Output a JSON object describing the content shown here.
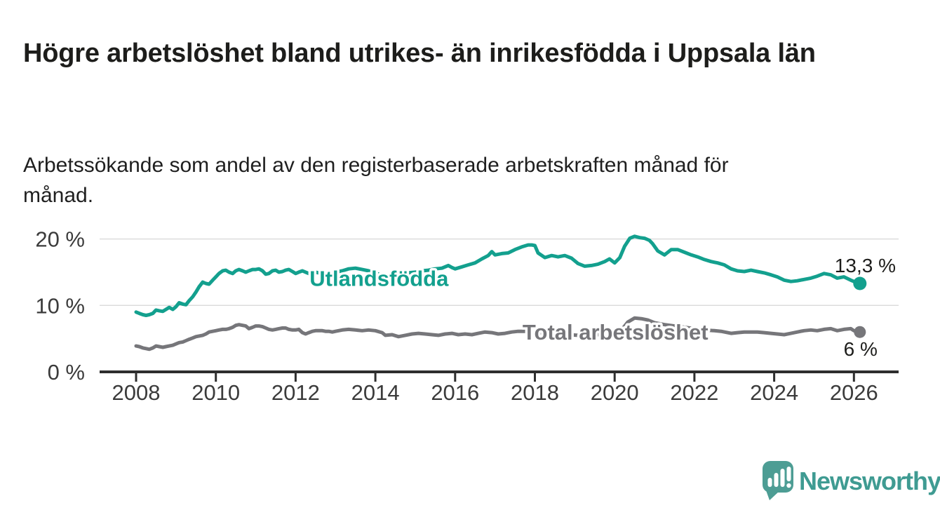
{
  "header": {
    "title": "Högre arbetslöshet bland utrikes- än inrikesfödda i Uppsala län",
    "subtitle": "Arbetssökande som andel av den registerbaserade arbetskraften månad för månad."
  },
  "chart_data": {
    "type": "line",
    "title": "Högre arbetslöshet bland utrikes- än inrikesfödda i Uppsala län",
    "subtitle": "Arbetssökande som andel av den registerbaserade arbetskraften månad för månad.",
    "grid": "horizontal-only",
    "legend": "inline-labels",
    "x_axis": {
      "range": [
        2007.1,
        2027.2
      ],
      "ticks": [
        2008,
        2010,
        2012,
        2014,
        2016,
        2018,
        2020,
        2022,
        2024,
        2026
      ],
      "tick_labels": [
        "2008",
        "2010",
        "2012",
        "2014",
        "2016",
        "2018",
        "2020",
        "2022",
        "2024",
        "2026"
      ]
    },
    "y_axis": {
      "unit": "%",
      "range": [
        0,
        22.2
      ],
      "ticks": [
        0,
        10,
        20
      ],
      "tick_labels": [
        "0 %",
        "10 %",
        "20 %"
      ]
    },
    "series": [
      {
        "id": "utlandsfodda",
        "name": "Utlandsfödda",
        "color": "#13a08e",
        "end_label": "13,3 %",
        "end_value": 13.3,
        "label_anchor": {
          "x": 2012.35,
          "y": 14.1
        },
        "points": [
          [
            2008.0,
            9.0
          ],
          [
            2008.08,
            8.8
          ],
          [
            2008.17,
            8.6
          ],
          [
            2008.25,
            8.5
          ],
          [
            2008.33,
            8.6
          ],
          [
            2008.42,
            8.8
          ],
          [
            2008.5,
            9.3
          ],
          [
            2008.58,
            9.2
          ],
          [
            2008.67,
            9.1
          ],
          [
            2008.75,
            9.4
          ],
          [
            2008.83,
            9.7
          ],
          [
            2008.92,
            9.4
          ],
          [
            2009.0,
            9.8
          ],
          [
            2009.08,
            10.4
          ],
          [
            2009.17,
            10.2
          ],
          [
            2009.25,
            10.1
          ],
          [
            2009.33,
            10.7
          ],
          [
            2009.42,
            11.3
          ],
          [
            2009.5,
            12.0
          ],
          [
            2009.58,
            12.8
          ],
          [
            2009.67,
            13.5
          ],
          [
            2009.75,
            13.3
          ],
          [
            2009.83,
            13.2
          ],
          [
            2009.92,
            13.8
          ],
          [
            2010.0,
            14.3
          ],
          [
            2010.08,
            14.8
          ],
          [
            2010.17,
            15.2
          ],
          [
            2010.25,
            15.3
          ],
          [
            2010.33,
            15.0
          ],
          [
            2010.42,
            14.8
          ],
          [
            2010.5,
            15.2
          ],
          [
            2010.58,
            15.4
          ],
          [
            2010.67,
            15.2
          ],
          [
            2010.75,
            15.0
          ],
          [
            2010.83,
            15.2
          ],
          [
            2010.92,
            15.4
          ],
          [
            2011.0,
            15.4
          ],
          [
            2011.08,
            15.5
          ],
          [
            2011.17,
            15.2
          ],
          [
            2011.25,
            14.7
          ],
          [
            2011.33,
            14.8
          ],
          [
            2011.42,
            15.2
          ],
          [
            2011.5,
            15.3
          ],
          [
            2011.58,
            15.0
          ],
          [
            2011.67,
            15.1
          ],
          [
            2011.75,
            15.3
          ],
          [
            2011.83,
            15.4
          ],
          [
            2011.92,
            15.1
          ],
          [
            2012.0,
            14.8
          ],
          [
            2012.08,
            15.0
          ],
          [
            2012.17,
            15.2
          ],
          [
            2012.25,
            15.0
          ],
          [
            2012.33,
            14.8
          ],
          [
            2012.42,
            14.7
          ],
          [
            2012.5,
            15.0
          ],
          [
            2012.58,
            14.9
          ],
          [
            2012.67,
            14.8
          ],
          [
            2012.75,
            14.9
          ],
          [
            2012.83,
            15.0
          ],
          [
            2012.92,
            14.9
          ],
          [
            2013.0,
            15.0
          ],
          [
            2013.17,
            15.2
          ],
          [
            2013.33,
            15.5
          ],
          [
            2013.5,
            15.6
          ],
          [
            2013.67,
            15.4
          ],
          [
            2013.83,
            15.2
          ],
          [
            2014.0,
            14.9
          ],
          [
            2014.17,
            14.5
          ],
          [
            2014.33,
            14.2
          ],
          [
            2014.5,
            14.4
          ],
          [
            2014.67,
            14.7
          ],
          [
            2014.83,
            14.9
          ],
          [
            2015.0,
            15.0
          ],
          [
            2015.17,
            15.2
          ],
          [
            2015.33,
            15.3
          ],
          [
            2015.5,
            15.5
          ],
          [
            2015.67,
            15.6
          ],
          [
            2015.83,
            16.0
          ],
          [
            2015.92,
            15.7
          ],
          [
            2016.0,
            15.5
          ],
          [
            2016.17,
            15.8
          ],
          [
            2016.33,
            16.1
          ],
          [
            2016.5,
            16.4
          ],
          [
            2016.67,
            17.0
          ],
          [
            2016.83,
            17.5
          ],
          [
            2016.92,
            18.1
          ],
          [
            2017.0,
            17.6
          ],
          [
            2017.17,
            17.8
          ],
          [
            2017.33,
            17.9
          ],
          [
            2017.5,
            18.4
          ],
          [
            2017.67,
            18.8
          ],
          [
            2017.83,
            19.1
          ],
          [
            2017.92,
            19.1
          ],
          [
            2018.0,
            19.0
          ],
          [
            2018.08,
            17.9
          ],
          [
            2018.25,
            17.2
          ],
          [
            2018.42,
            17.5
          ],
          [
            2018.58,
            17.3
          ],
          [
            2018.75,
            17.5
          ],
          [
            2018.92,
            17.1
          ],
          [
            2019.08,
            16.3
          ],
          [
            2019.25,
            15.9
          ],
          [
            2019.42,
            16.0
          ],
          [
            2019.58,
            16.2
          ],
          [
            2019.75,
            16.6
          ],
          [
            2019.87,
            17.0
          ],
          [
            2020.0,
            16.4
          ],
          [
            2020.13,
            17.2
          ],
          [
            2020.25,
            18.9
          ],
          [
            2020.38,
            20.1
          ],
          [
            2020.5,
            20.4
          ],
          [
            2020.63,
            20.2
          ],
          [
            2020.75,
            20.1
          ],
          [
            2020.87,
            19.8
          ],
          [
            2020.95,
            19.3
          ],
          [
            2021.08,
            18.2
          ],
          [
            2021.25,
            17.6
          ],
          [
            2021.42,
            18.4
          ],
          [
            2021.58,
            18.4
          ],
          [
            2021.75,
            18.0
          ],
          [
            2021.92,
            17.6
          ],
          [
            2022.08,
            17.3
          ],
          [
            2022.25,
            16.9
          ],
          [
            2022.42,
            16.6
          ],
          [
            2022.58,
            16.4
          ],
          [
            2022.75,
            16.1
          ],
          [
            2022.92,
            15.5
          ],
          [
            2023.08,
            15.2
          ],
          [
            2023.25,
            15.1
          ],
          [
            2023.42,
            15.3
          ],
          [
            2023.58,
            15.1
          ],
          [
            2023.75,
            14.9
          ],
          [
            2023.92,
            14.6
          ],
          [
            2024.08,
            14.3
          ],
          [
            2024.25,
            13.8
          ],
          [
            2024.42,
            13.6
          ],
          [
            2024.58,
            13.7
          ],
          [
            2024.75,
            13.9
          ],
          [
            2024.92,
            14.1
          ],
          [
            2025.08,
            14.4
          ],
          [
            2025.25,
            14.8
          ],
          [
            2025.42,
            14.6
          ],
          [
            2025.58,
            14.1
          ],
          [
            2025.75,
            14.3
          ],
          [
            2025.92,
            13.8
          ],
          [
            2026.0,
            13.6
          ],
          [
            2026.15,
            13.3
          ]
        ]
      },
      {
        "id": "total-arbetsloshet",
        "name": "Total arbetslöshet",
        "color": "#76767a",
        "end_label": "6 %",
        "end_value": 6.0,
        "label_anchor": {
          "x": 2017.69,
          "y": 6.0
        },
        "points": [
          [
            2008.0,
            3.9
          ],
          [
            2008.08,
            3.8
          ],
          [
            2008.17,
            3.6
          ],
          [
            2008.25,
            3.5
          ],
          [
            2008.33,
            3.4
          ],
          [
            2008.42,
            3.6
          ],
          [
            2008.5,
            3.9
          ],
          [
            2008.58,
            3.8
          ],
          [
            2008.67,
            3.7
          ],
          [
            2008.75,
            3.8
          ],
          [
            2008.83,
            3.9
          ],
          [
            2008.92,
            4.0
          ],
          [
            2009.0,
            4.2
          ],
          [
            2009.08,
            4.4
          ],
          [
            2009.17,
            4.5
          ],
          [
            2009.25,
            4.7
          ],
          [
            2009.33,
            4.9
          ],
          [
            2009.42,
            5.1
          ],
          [
            2009.5,
            5.3
          ],
          [
            2009.58,
            5.4
          ],
          [
            2009.67,
            5.5
          ],
          [
            2009.75,
            5.7
          ],
          [
            2009.83,
            6.0
          ],
          [
            2009.92,
            6.1
          ],
          [
            2010.0,
            6.2
          ],
          [
            2010.08,
            6.3
          ],
          [
            2010.17,
            6.4
          ],
          [
            2010.25,
            6.4
          ],
          [
            2010.33,
            6.5
          ],
          [
            2010.42,
            6.7
          ],
          [
            2010.5,
            7.0
          ],
          [
            2010.58,
            7.1
          ],
          [
            2010.67,
            7.0
          ],
          [
            2010.75,
            6.9
          ],
          [
            2010.83,
            6.5
          ],
          [
            2010.92,
            6.7
          ],
          [
            2011.0,
            6.9
          ],
          [
            2011.08,
            6.9
          ],
          [
            2011.17,
            6.8
          ],
          [
            2011.25,
            6.6
          ],
          [
            2011.33,
            6.4
          ],
          [
            2011.42,
            6.3
          ],
          [
            2011.5,
            6.4
          ],
          [
            2011.58,
            6.5
          ],
          [
            2011.67,
            6.6
          ],
          [
            2011.75,
            6.6
          ],
          [
            2011.83,
            6.4
          ],
          [
            2011.92,
            6.3
          ],
          [
            2012.0,
            6.3
          ],
          [
            2012.08,
            6.4
          ],
          [
            2012.17,
            5.9
          ],
          [
            2012.25,
            5.7
          ],
          [
            2012.33,
            5.9
          ],
          [
            2012.42,
            6.1
          ],
          [
            2012.5,
            6.2
          ],
          [
            2012.58,
            6.2
          ],
          [
            2012.67,
            6.2
          ],
          [
            2012.75,
            6.1
          ],
          [
            2012.83,
            6.1
          ],
          [
            2012.92,
            6.0
          ],
          [
            2013.0,
            6.1
          ],
          [
            2013.17,
            6.3
          ],
          [
            2013.33,
            6.4
          ],
          [
            2013.5,
            6.3
          ],
          [
            2013.67,
            6.2
          ],
          [
            2013.83,
            6.3
          ],
          [
            2014.0,
            6.2
          ],
          [
            2014.17,
            5.9
          ],
          [
            2014.25,
            5.5
          ],
          [
            2014.42,
            5.6
          ],
          [
            2014.58,
            5.3
          ],
          [
            2014.75,
            5.5
          ],
          [
            2014.92,
            5.7
          ],
          [
            2015.08,
            5.8
          ],
          [
            2015.25,
            5.7
          ],
          [
            2015.42,
            5.6
          ],
          [
            2015.58,
            5.5
          ],
          [
            2015.75,
            5.7
          ],
          [
            2015.92,
            5.8
          ],
          [
            2016.08,
            5.6
          ],
          [
            2016.25,
            5.7
          ],
          [
            2016.42,
            5.6
          ],
          [
            2016.58,
            5.8
          ],
          [
            2016.75,
            6.0
          ],
          [
            2016.92,
            5.9
          ],
          [
            2017.08,
            5.7
          ],
          [
            2017.25,
            5.8
          ],
          [
            2017.42,
            6.0
          ],
          [
            2017.58,
            6.1
          ],
          [
            2017.75,
            6.1
          ],
          [
            2017.92,
            6.0
          ],
          [
            2018.08,
            5.9
          ],
          [
            2018.33,
            5.8
          ],
          [
            2018.58,
            5.7
          ],
          [
            2018.83,
            5.6
          ],
          [
            2019.08,
            5.5
          ],
          [
            2019.33,
            5.5
          ],
          [
            2019.58,
            5.6
          ],
          [
            2019.83,
            5.7
          ],
          [
            2020.0,
            5.8
          ],
          [
            2020.17,
            6.3
          ],
          [
            2020.33,
            7.5
          ],
          [
            2020.5,
            8.1
          ],
          [
            2020.67,
            8.0
          ],
          [
            2020.83,
            7.8
          ],
          [
            2021.0,
            7.4
          ],
          [
            2021.25,
            7.1
          ],
          [
            2021.5,
            6.9
          ],
          [
            2021.75,
            6.7
          ],
          [
            2022.0,
            6.5
          ],
          [
            2022.25,
            6.3
          ],
          [
            2022.5,
            6.2
          ],
          [
            2022.67,
            6.1
          ],
          [
            2022.92,
            5.8
          ],
          [
            2023.08,
            5.9
          ],
          [
            2023.25,
            6.0
          ],
          [
            2023.42,
            6.0
          ],
          [
            2023.58,
            6.0
          ],
          [
            2023.75,
            5.9
          ],
          [
            2023.92,
            5.8
          ],
          [
            2024.08,
            5.7
          ],
          [
            2024.25,
            5.6
          ],
          [
            2024.42,
            5.8
          ],
          [
            2024.58,
            6.0
          ],
          [
            2024.75,
            6.2
          ],
          [
            2024.92,
            6.3
          ],
          [
            2025.08,
            6.2
          ],
          [
            2025.25,
            6.4
          ],
          [
            2025.42,
            6.5
          ],
          [
            2025.58,
            6.2
          ],
          [
            2025.75,
            6.4
          ],
          [
            2025.92,
            6.5
          ],
          [
            2026.0,
            6.2
          ],
          [
            2026.15,
            6.0
          ]
        ]
      }
    ],
    "colors": {
      "grid": "#dcdcdc",
      "axis": "#2e2e2e",
      "tick_text": "#3b3b3b",
      "annotation_text": "#1d1d1b"
    }
  },
  "footer": {
    "brand": "Newsworthy",
    "brand_color": "#3f9b92",
    "logo_bubble_color": "#4d9d94"
  }
}
